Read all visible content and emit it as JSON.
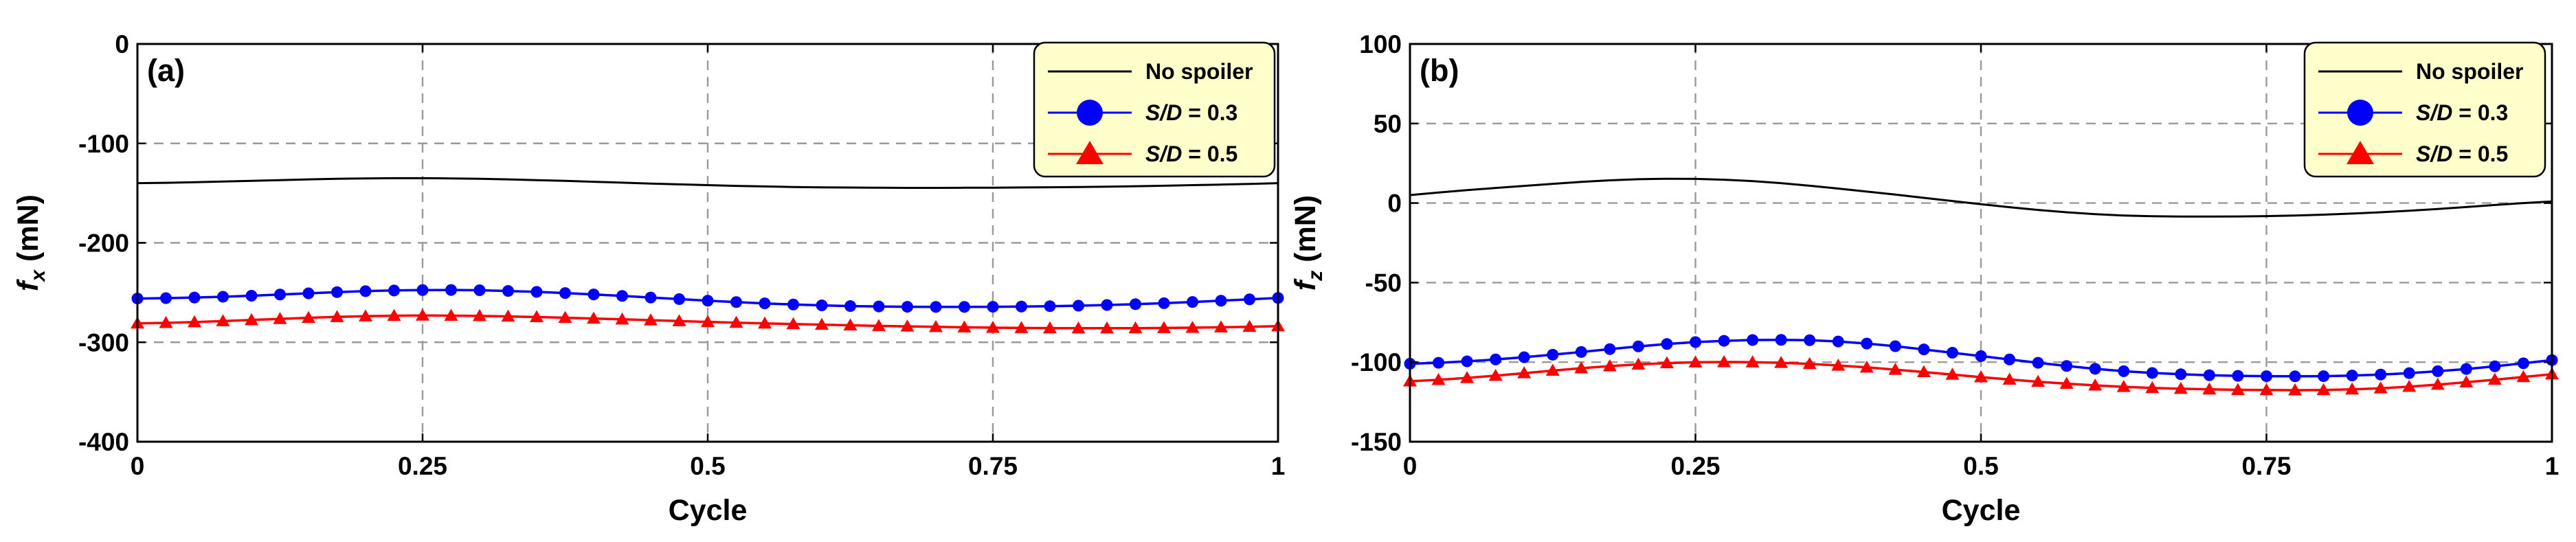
{
  "chart_data": [
    {
      "type": "line",
      "panel_label": "(a)",
      "xlabel": "Cycle",
      "ylabel_base": "f",
      "ylabel_sub": "x",
      "ylabel_unit": " (mN)",
      "xlim": [
        0,
        1
      ],
      "ylim": [
        -400,
        0
      ],
      "xticks": [
        0,
        0.25,
        0.5,
        0.75,
        1
      ],
      "xtick_labels": [
        "0",
        "0.25",
        "0.5",
        "0.75",
        "1"
      ],
      "yticks": [
        -400,
        -300,
        -200,
        -100,
        0
      ],
      "ytick_labels": [
        "-400",
        "-300",
        "-200",
        "-100",
        "0"
      ],
      "grid": true,
      "legend_position": "top-right",
      "x": [
        0,
        0.025,
        0.05,
        0.075,
        0.1,
        0.125,
        0.15,
        0.175,
        0.2,
        0.225,
        0.25,
        0.275,
        0.3,
        0.325,
        0.35,
        0.375,
        0.4,
        0.425,
        0.45,
        0.475,
        0.5,
        0.525,
        0.55,
        0.575,
        0.6,
        0.625,
        0.65,
        0.675,
        0.7,
        0.725,
        0.75,
        0.775,
        0.8,
        0.825,
        0.85,
        0.875,
        0.9,
        0.925,
        0.95,
        0.975,
        1
      ],
      "series": [
        {
          "name": "No spoiler",
          "name_plain": "No spoiler",
          "color": "#000000",
          "marker": "none",
          "values": [
            -140,
            -139.6,
            -139.1,
            -138.4,
            -137.7,
            -136.9,
            -136.2,
            -135.6,
            -135.2,
            -135,
            -135,
            -135.2,
            -135.6,
            -136.2,
            -136.9,
            -137.7,
            -138.6,
            -139.5,
            -140.4,
            -141.2,
            -142,
            -142.7,
            -143.3,
            -143.8,
            -144.2,
            -144.4,
            -144.6,
            -144.7,
            -144.7,
            -144.6,
            -144.5,
            -144.3,
            -144.1,
            -143.8,
            -143.5,
            -143.1,
            -142.6,
            -142,
            -141.4,
            -140.7,
            -140
          ]
        },
        {
          "name": "S/D = 0.3",
          "name_italic": "S/D",
          "name_rest": " = 0.3",
          "color": "#0000ff",
          "marker": "circle",
          "values": [
            -256,
            -255.6,
            -255,
            -254.2,
            -253.2,
            -252,
            -250.8,
            -249.6,
            -248.6,
            -247.9,
            -247.5,
            -247.4,
            -247.7,
            -248.4,
            -249.3,
            -250.5,
            -251.9,
            -253.4,
            -255,
            -256.6,
            -258.2,
            -259.6,
            -260.9,
            -262,
            -262.9,
            -263.6,
            -264,
            -264.3,
            -264.4,
            -264.4,
            -264.3,
            -264.1,
            -263.7,
            -263.2,
            -262.5,
            -261.7,
            -260.7,
            -259.5,
            -258.2,
            -256.8,
            -255.4
          ]
        },
        {
          "name": "S/D = 0.5",
          "name_italic": "S/D",
          "name_rest": " = 0.5",
          "color": "#ff0000",
          "marker": "triangle",
          "values": [
            -281,
            -280.5,
            -279.7,
            -278.7,
            -277.6,
            -276.5,
            -275.4,
            -274.5,
            -273.8,
            -273.3,
            -273.1,
            -273.2,
            -273.5,
            -274,
            -274.6,
            -275.3,
            -276.1,
            -276.9,
            -277.8,
            -278.7,
            -279.5,
            -280.3,
            -281,
            -281.7,
            -282.3,
            -282.9,
            -283.5,
            -284,
            -284.5,
            -284.9,
            -285.3,
            -285.6,
            -285.8,
            -285.9,
            -285.9,
            -285.8,
            -285.6,
            -285.3,
            -284.9,
            -284.4,
            -283.8
          ]
        }
      ]
    },
    {
      "type": "line",
      "panel_label": "(b)",
      "xlabel": "Cycle",
      "ylabel_base": "f",
      "ylabel_sub": "z",
      "ylabel_unit": " (mN)",
      "xlim": [
        0,
        1
      ],
      "ylim": [
        -150,
        100
      ],
      "xticks": [
        0,
        0.25,
        0.5,
        0.75,
        1
      ],
      "xtick_labels": [
        "0",
        "0.25",
        "0.5",
        "0.75",
        "1"
      ],
      "yticks": [
        -150,
        -100,
        -50,
        0,
        50,
        100
      ],
      "ytick_labels": [
        "-150",
        "-100",
        "-50",
        "0",
        "50",
        "100"
      ],
      "grid": true,
      "legend_position": "top-right",
      "x": [
        0,
        0.025,
        0.05,
        0.075,
        0.1,
        0.125,
        0.15,
        0.175,
        0.2,
        0.225,
        0.25,
        0.275,
        0.3,
        0.325,
        0.35,
        0.375,
        0.4,
        0.425,
        0.45,
        0.475,
        0.5,
        0.525,
        0.55,
        0.575,
        0.6,
        0.625,
        0.65,
        0.675,
        0.7,
        0.725,
        0.75,
        0.775,
        0.8,
        0.825,
        0.85,
        0.875,
        0.9,
        0.925,
        0.95,
        0.975,
        1
      ],
      "series": [
        {
          "name": "No spoiler",
          "name_plain": "No spoiler",
          "color": "#000000",
          "marker": "none",
          "values": [
            5,
            6.6,
            8.1,
            9.5,
            10.8,
            12.1,
            13.3,
            14.3,
            15,
            15.3,
            15.2,
            14.7,
            13.8,
            12.5,
            10.9,
            9.1,
            7.2,
            5.3,
            3.3,
            1.3,
            -0.7,
            -2.6,
            -4.3,
            -5.8,
            -7,
            -7.8,
            -8.3,
            -8.5,
            -8.5,
            -8.4,
            -8.2,
            -7.8,
            -7.3,
            -6.6,
            -5.8,
            -4.8,
            -3.7,
            -2.5,
            -1.2,
            0,
            1
          ]
        },
        {
          "name": "S/D = 0.3",
          "name_italic": "S/D",
          "name_rest": " = 0.3",
          "color": "#0000ff",
          "marker": "circle",
          "values": [
            -101,
            -100.4,
            -99.5,
            -98.3,
            -96.9,
            -95.3,
            -93.6,
            -91.8,
            -90.1,
            -88.6,
            -87.4,
            -86.6,
            -86.1,
            -86,
            -86.2,
            -87,
            -88.3,
            -90,
            -92,
            -94.1,
            -96.2,
            -98.3,
            -100.4,
            -102.4,
            -104.2,
            -105.7,
            -106.8,
            -107.6,
            -108.2,
            -108.6,
            -108.8,
            -108.9,
            -108.8,
            -108.4,
            -107.8,
            -106.9,
            -105.7,
            -104.3,
            -102.6,
            -100.7,
            -98.7
          ]
        },
        {
          "name": "S/D = 0.5",
          "name_italic": "S/D",
          "name_rest": " = 0.5",
          "color": "#ff0000",
          "marker": "triangle",
          "values": [
            -112,
            -111.1,
            -109.9,
            -108.5,
            -106.9,
            -105.3,
            -103.8,
            -102.5,
            -101.4,
            -100.6,
            -100.1,
            -99.9,
            -100,
            -100.4,
            -101.1,
            -102.1,
            -103.3,
            -104.7,
            -106.2,
            -107.8,
            -109.4,
            -110.9,
            -112.3,
            -113.5,
            -114.6,
            -115.5,
            -116.2,
            -116.7,
            -117.1,
            -117.4,
            -117.5,
            -117.6,
            -117.5,
            -117.1,
            -116.4,
            -115.4,
            -114.1,
            -112.6,
            -111,
            -109.3,
            -107.6
          ]
        }
      ]
    }
  ]
}
